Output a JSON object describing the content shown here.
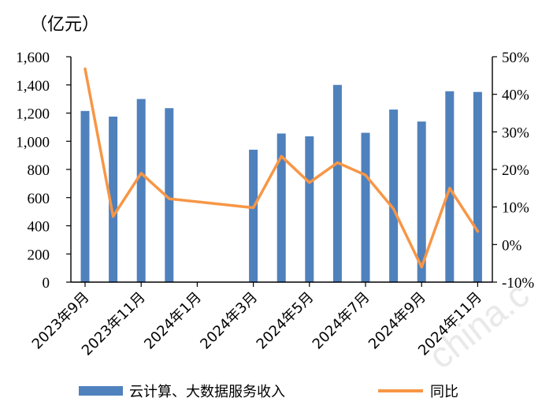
{
  "chart_data": {
    "type": "bar+line",
    "unit_label": "（亿元）",
    "categories": [
      "2023年9月",
      "2023年10月",
      "2023年11月",
      "2023年12月",
      "2024年1月",
      "2024年2月",
      "2024年3月",
      "2024年4月",
      "2024年5月",
      "2024年6月",
      "2024年7月",
      "2024年8月",
      "2024年9月",
      "2024年10月",
      "2024年11月"
    ],
    "x_tick_labels": [
      "2023年9月",
      "2023年11月",
      "2024年1月",
      "2024年3月",
      "2024年5月",
      "2024年7月",
      "2024年9月",
      "2024年11月"
    ],
    "series": [
      {
        "name": "云计算、大数据服务收入",
        "kind": "bar",
        "axis": "left",
        "color": "#4f81bd",
        "values": [
          1215,
          1175,
          1300,
          1235,
          null,
          null,
          940,
          1055,
          1035,
          1400,
          1060,
          1225,
          1140,
          1355,
          1350
        ]
      },
      {
        "name": "同比",
        "kind": "line",
        "axis": "right",
        "color": "#f79646",
        "values": [
          46.8,
          7.5,
          19.0,
          12.2,
          null,
          null,
          9.8,
          23.5,
          16.5,
          21.8,
          18.5,
          9.5,
          -6.0,
          15.0,
          3.5
        ]
      }
    ],
    "y_left": {
      "min": 0,
      "max": 1600,
      "ticks": [
        "0",
        "200",
        "400",
        "600",
        "800",
        "1,000",
        "1,200",
        "1,400",
        "1,600"
      ]
    },
    "y_right": {
      "min": -10,
      "max": 50,
      "ticks": [
        "-10%",
        "0%",
        "10%",
        "20%",
        "30%",
        "40%",
        "50%"
      ]
    },
    "grid": false,
    "legend_position": "bottom"
  },
  "watermark": "china.c"
}
